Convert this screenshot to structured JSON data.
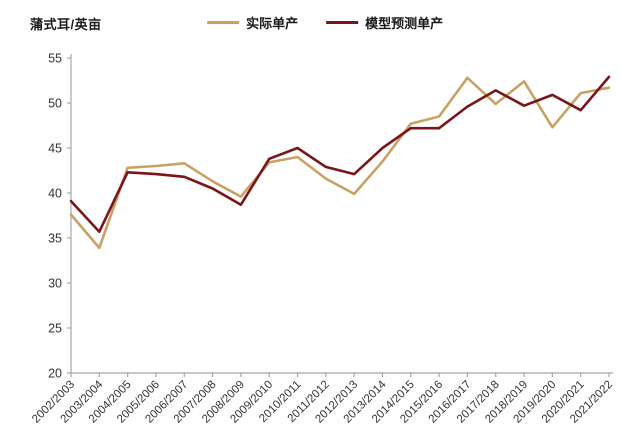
{
  "chart_data": {
    "type": "line",
    "title": "",
    "ylabel": "蒲式耳/英亩",
    "xlabel": "",
    "categories": [
      "2002/2003",
      "2003/2004",
      "2004/2005",
      "2005/2006",
      "2006/2007",
      "2007/2008",
      "2008/2009",
      "2009/2010",
      "2010/2011",
      "2011/2012",
      "2012/2013",
      "2013/2014",
      "2014/2015",
      "2015/2016",
      "2016/2017",
      "2017/2018",
      "2018/2019",
      "2019/2020",
      "2020/2021",
      "2021/2022"
    ],
    "series": [
      {
        "name": "实际单产",
        "color": "#C9A263",
        "values": [
          37.6,
          33.9,
          42.8,
          43.0,
          43.3,
          41.3,
          39.6,
          43.4,
          44.0,
          41.6,
          39.9,
          43.5,
          47.7,
          48.5,
          52.8,
          49.9,
          52.4,
          47.3,
          51.1,
          51.7
        ]
      },
      {
        "name": "模型预测单产",
        "color": "#7A161A",
        "values": [
          39.1,
          35.7,
          42.3,
          42.1,
          41.8,
          40.5,
          38.7,
          43.8,
          45.0,
          42.9,
          42.1,
          45.0,
          47.2,
          47.2,
          49.6,
          51.4,
          49.7,
          50.9,
          49.2,
          52.9
        ]
      }
    ],
    "ylim": [
      20,
      55
    ],
    "yticks": [
      20,
      25,
      30,
      35,
      40,
      45,
      50,
      55
    ],
    "grid": false,
    "legend_position": "top-center",
    "axis_color": "#A6A6A6",
    "tick_text_color": "#333333",
    "line_width": 2.6
  }
}
